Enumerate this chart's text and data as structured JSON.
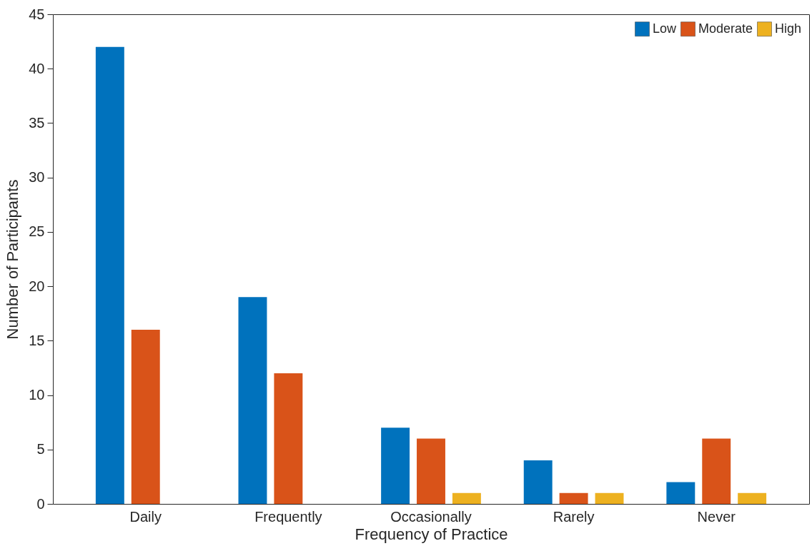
{
  "chart_data": {
    "type": "bar",
    "xlabel": "Frequency of Practice",
    "ylabel": "Number of Participants",
    "categories": [
      "Daily",
      "Frequently",
      "Occasionally",
      "Rarely",
      "Never"
    ],
    "series": [
      {
        "name": "Low",
        "color": "#0072bd",
        "values": [
          42,
          19,
          7,
          4,
          2
        ]
      },
      {
        "name": "Moderate",
        "color": "#d95319",
        "values": [
          16,
          12,
          6,
          1,
          6
        ]
      },
      {
        "name": "High",
        "color": "#edb120",
        "values": [
          0,
          0,
          1,
          1,
          1
        ]
      }
    ],
    "ylim": [
      0,
      45
    ],
    "yticks": [
      0,
      5,
      10,
      15,
      20,
      25,
      30,
      35,
      40,
      45
    ],
    "grid": false,
    "legend": "top right"
  }
}
